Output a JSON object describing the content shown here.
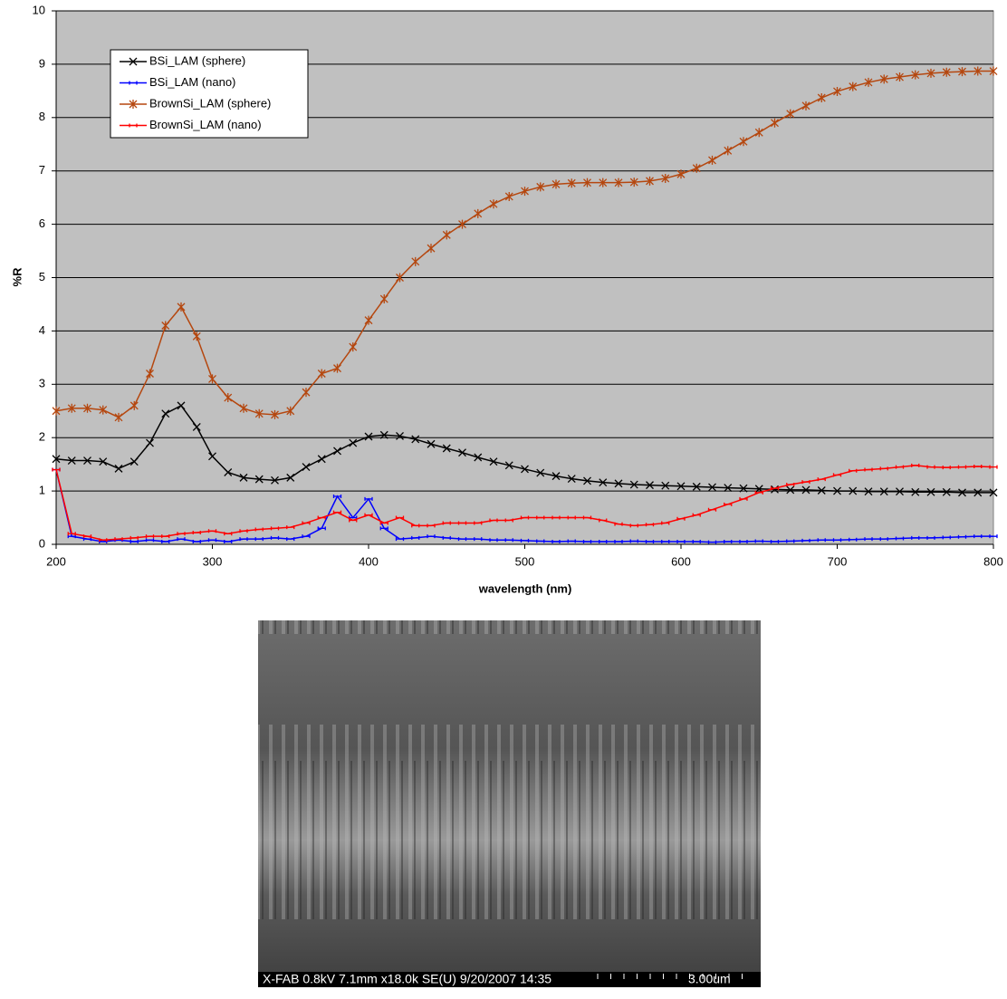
{
  "chart_data": {
    "type": "line",
    "xlabel": "wavelength (nm)",
    "ylabel": "%R",
    "x": [
      200,
      210,
      220,
      230,
      240,
      250,
      260,
      270,
      280,
      290,
      300,
      310,
      320,
      330,
      340,
      350,
      360,
      370,
      380,
      390,
      400,
      410,
      420,
      430,
      440,
      450,
      460,
      470,
      480,
      490,
      500,
      510,
      520,
      530,
      540,
      550,
      560,
      570,
      580,
      590,
      600,
      610,
      620,
      630,
      640,
      650,
      660,
      670,
      680,
      690,
      700,
      710,
      720,
      730,
      740,
      750,
      760,
      770,
      780,
      790,
      800
    ],
    "series": [
      {
        "name": "BSi_LAM (sphere)",
        "color": "#000000",
        "marker": "x",
        "values": [
          1.6,
          1.57,
          1.57,
          1.55,
          1.42,
          1.55,
          1.9,
          2.45,
          2.6,
          2.2,
          1.65,
          1.35,
          1.25,
          1.22,
          1.2,
          1.25,
          1.45,
          1.6,
          1.75,
          1.9,
          2.02,
          2.05,
          2.03,
          1.97,
          1.88,
          1.8,
          1.72,
          1.63,
          1.55,
          1.48,
          1.41,
          1.34,
          1.28,
          1.23,
          1.19,
          1.16,
          1.14,
          1.12,
          1.11,
          1.1,
          1.09,
          1.08,
          1.07,
          1.06,
          1.05,
          1.04,
          1.03,
          1.02,
          1.02,
          1.01,
          1.0,
          1.0,
          0.99,
          0.99,
          0.99,
          0.98,
          0.98,
          0.98,
          0.97,
          0.97,
          0.97
        ]
      },
      {
        "name": "BSi_LAM (nano)",
        "color": "#0000ff",
        "marker": "dash",
        "values": [
          1.4,
          0.15,
          0.1,
          0.05,
          0.08,
          0.05,
          0.08,
          0.05,
          0.1,
          0.05,
          0.08,
          0.05,
          0.1,
          0.1,
          0.12,
          0.1,
          0.15,
          0.3,
          0.9,
          0.5,
          0.85,
          0.3,
          0.1,
          0.12,
          0.15,
          0.12,
          0.1,
          0.1,
          0.08,
          0.08,
          0.07,
          0.06,
          0.05,
          0.06,
          0.05,
          0.05,
          0.05,
          0.06,
          0.05,
          0.05,
          0.05,
          0.05,
          0.04,
          0.05,
          0.05,
          0.06,
          0.05,
          0.06,
          0.07,
          0.08,
          0.08,
          0.09,
          0.1,
          0.1,
          0.11,
          0.12,
          0.12,
          0.13,
          0.14,
          0.15,
          0.15
        ]
      },
      {
        "name": "BrownSi_LAM (sphere)",
        "color": "#b5470f",
        "marker": "star",
        "values": [
          2.5,
          2.55,
          2.55,
          2.52,
          2.38,
          2.6,
          3.2,
          4.1,
          4.45,
          3.9,
          3.1,
          2.75,
          2.55,
          2.45,
          2.43,
          2.5,
          2.85,
          3.2,
          3.3,
          3.7,
          4.2,
          4.6,
          5.0,
          5.3,
          5.55,
          5.8,
          6.0,
          6.2,
          6.38,
          6.52,
          6.62,
          6.7,
          6.75,
          6.77,
          6.78,
          6.78,
          6.78,
          6.79,
          6.81,
          6.86,
          6.94,
          7.05,
          7.2,
          7.38,
          7.55,
          7.72,
          7.9,
          8.07,
          8.22,
          8.37,
          8.49,
          8.58,
          8.66,
          8.72,
          8.76,
          8.8,
          8.83,
          8.85,
          8.86,
          8.87,
          8.87
        ]
      },
      {
        "name": "BrownSi_LAM (nano)",
        "color": "#ff0000",
        "marker": "dash",
        "values": [
          1.4,
          0.2,
          0.15,
          0.08,
          0.1,
          0.12,
          0.15,
          0.15,
          0.2,
          0.22,
          0.25,
          0.2,
          0.25,
          0.28,
          0.3,
          0.32,
          0.4,
          0.5,
          0.6,
          0.45,
          0.55,
          0.4,
          0.5,
          0.35,
          0.35,
          0.4,
          0.4,
          0.4,
          0.45,
          0.45,
          0.5,
          0.5,
          0.5,
          0.5,
          0.5,
          0.45,
          0.38,
          0.35,
          0.37,
          0.4,
          0.48,
          0.55,
          0.65,
          0.75,
          0.85,
          0.97,
          1.05,
          1.12,
          1.17,
          1.22,
          1.3,
          1.38,
          1.4,
          1.42,
          1.45,
          1.48,
          1.45,
          1.44,
          1.45,
          1.46,
          1.45
        ]
      }
    ],
    "xlim": [
      200,
      800
    ],
    "xticks": [
      200,
      300,
      400,
      500,
      600,
      700,
      800
    ],
    "ylim": [
      0,
      10
    ],
    "yticks": [
      0,
      1,
      2,
      3,
      4,
      5,
      6,
      7,
      8,
      9,
      10
    ],
    "grid": true,
    "legend": "upper left",
    "background": "#c0c0c0"
  },
  "image": {
    "caption": "X-FAB 0.8kV 7.1mm x18.0k SE(U) 9/20/2007 14:35",
    "scale_label": "3.00um"
  }
}
